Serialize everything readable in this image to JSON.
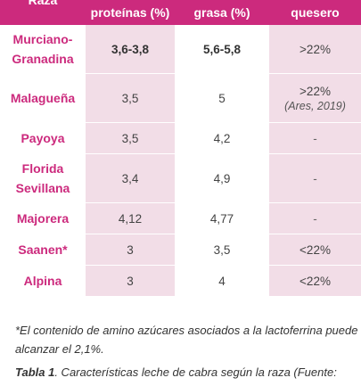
{
  "table": {
    "headers": [
      "Raza",
      "proteínas (%)",
      "grasa (%)",
      "quesero"
    ],
    "rows": [
      {
        "raza": "Murciano-Granadina",
        "proteinas": "3,6-3,8",
        "grasa": "5,6-5,8",
        "quesero": ">22%",
        "cite": ""
      },
      {
        "raza": "Malagueña",
        "proteinas": "3,5",
        "grasa": "5",
        "quesero": ">22%",
        "cite": "(Ares, 2019)"
      },
      {
        "raza": "Payoya",
        "proteinas": "3,5",
        "grasa": "4,2",
        "quesero": "-",
        "cite": ""
      },
      {
        "raza": "Florida Sevillana",
        "proteinas": "3,4",
        "grasa": "4,9",
        "quesero": "-",
        "cite": ""
      },
      {
        "raza": "Majorera",
        "proteinas": "4,12",
        "grasa": "4,77",
        "quesero": "-",
        "cite": ""
      },
      {
        "raza": "Saanen*",
        "proteinas": "3",
        "grasa": "3,5",
        "quesero": "<22%",
        "cite": ""
      },
      {
        "raza": "Alpina",
        "proteinas": "3",
        "grasa": "4",
        "quesero": "<22%",
        "cite": ""
      }
    ]
  },
  "footnote": "*El contenido de amino azúcares asociados a la lactoferrina puede alcanzar el 2,1%.",
  "caption": {
    "label": "Tabla 1",
    "text": ". Características leche de cabra según la raza (Fuente:"
  },
  "colors": {
    "accent": "#cc2a7d",
    "row_tint": "#f2dde7"
  }
}
